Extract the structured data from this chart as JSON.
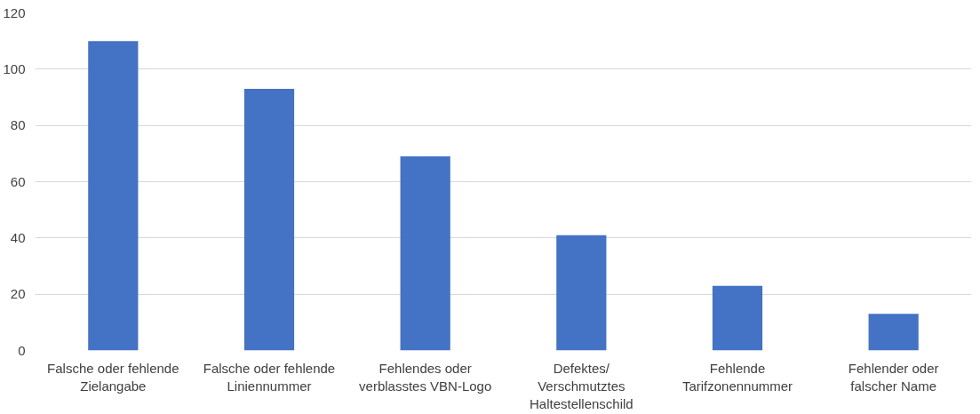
{
  "chart_data": {
    "type": "bar",
    "categories": [
      "Falsche oder fehlende Zielangabe",
      "Falsche oder fehlende Liniennummer",
      "Fehlendes oder verblasstes VBN-Logo",
      "Defektes/ Verschmutztes Haltestellenschild",
      "Fehlende Tarifzonennummer",
      "Fehlender oder falscher Name"
    ],
    "values": [
      110,
      93,
      69,
      41,
      23,
      13
    ],
    "color": "#4472c4",
    "ylim": [
      0,
      120
    ],
    "yticks": [
      0,
      20,
      40,
      60,
      80,
      100,
      120
    ],
    "grid": "y"
  }
}
